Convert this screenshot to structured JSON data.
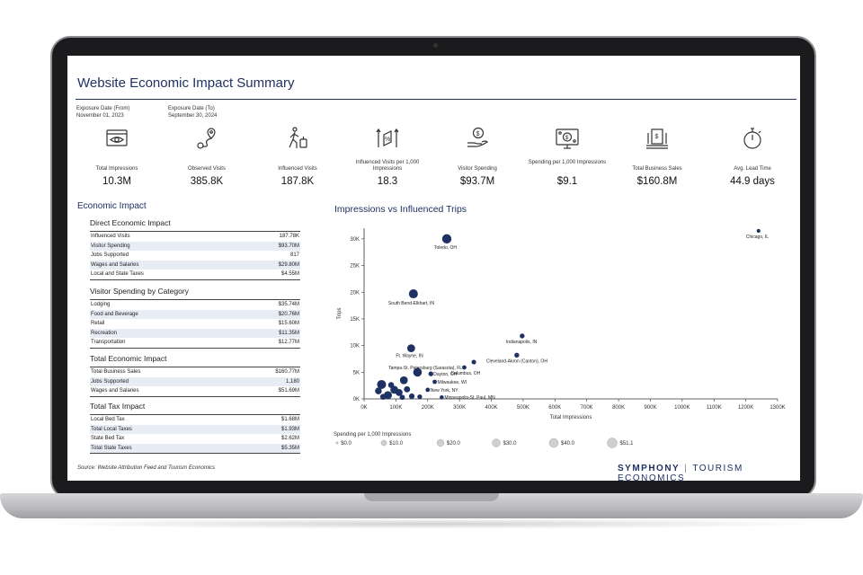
{
  "header": {
    "title": "Website Economic Impact Summary"
  },
  "dates": [
    {
      "label": "Exposure Date (From)",
      "value": "November 01, 2023"
    },
    {
      "label": "Exposure Date (To)",
      "value": "September 30, 2024"
    }
  ],
  "kpis": [
    {
      "label": "Total Impressions",
      "value": "10.3M",
      "icon": "eye-monitor-icon"
    },
    {
      "label": "Observed Visits",
      "value": "385.8K",
      "icon": "map-route-icon"
    },
    {
      "label": "Influenced Visits",
      "value": "187.8K",
      "icon": "traveler-luggage-icon"
    },
    {
      "label": "Influenced Visits per 1,000 Impressions",
      "value": "18.3",
      "icon": "percent-arrows-icon"
    },
    {
      "label": "Visitor Spending",
      "value": "$93.7M",
      "icon": "hand-coin-icon"
    },
    {
      "label": "Spending per 1,000 Impressions",
      "value": "$9.1",
      "icon": "screen-dollar-icon"
    },
    {
      "label": "Total Business Sales",
      "value": "$160.8M",
      "icon": "money-stack-icon"
    },
    {
      "label": "Avg. Lead Time",
      "value": "44.9 days",
      "icon": "stopwatch-icon"
    }
  ],
  "economic": {
    "title": "Economic Impact",
    "groups": [
      {
        "title": "Direct Economic Impact",
        "rows": [
          [
            "Influenced Visits",
            "187.78K"
          ],
          [
            "Visitor Spending",
            "$93.70M"
          ],
          [
            "Jobs Supported",
            "817"
          ],
          [
            "Wages and Salaries",
            "$29.80M"
          ],
          [
            "Local and State Taxes",
            "$4.55M"
          ]
        ]
      },
      {
        "title": "Visitor Spending by Category",
        "rows": [
          [
            "Lodging",
            "$35.74M"
          ],
          [
            "Food and Beverage",
            "$20.76M"
          ],
          [
            "Retail",
            "$15.60M"
          ],
          [
            "Recreation",
            "$11.35M"
          ],
          [
            "Transportation",
            "$12.77M"
          ]
        ]
      },
      {
        "title": "Total Economic Impact",
        "rows": [
          [
            "Total Business Sales",
            "$160.77M"
          ],
          [
            "Jobs Supported",
            "1,180"
          ],
          [
            "Wages and Salaries",
            "$51.69M"
          ]
        ]
      },
      {
        "title": "Total Tax Impact",
        "rows": [
          [
            "Local Bed Tax",
            "$1.68M"
          ],
          [
            "Total Local Taxes",
            "$1.93M"
          ],
          [
            "State Bed Tax",
            "$2.62M"
          ],
          [
            "Total State Taxes",
            "$5.35M"
          ]
        ]
      }
    ]
  },
  "chart_data": {
    "type": "scatter",
    "title": "Impressions vs Influenced Trips",
    "xlabel": "Total Impressions",
    "ylabel": "Trips",
    "xlim": [
      0,
      1300000
    ],
    "ylim": [
      0,
      32000
    ],
    "x_ticks": [
      0,
      100000,
      200000,
      300000,
      400000,
      500000,
      600000,
      700000,
      800000,
      900000,
      1000000,
      1100000,
      1200000,
      1300000
    ],
    "x_tick_labels": [
      "0K",
      "100K",
      "200K",
      "300K",
      "400K",
      "500K",
      "600K",
      "700K",
      "800K",
      "900K",
      "1000K",
      "1100K",
      "1200K",
      "1300K"
    ],
    "y_ticks": [
      0,
      5000,
      10000,
      15000,
      20000,
      25000,
      30000
    ],
    "y_tick_labels": [
      "0K",
      "5K",
      "10K",
      "15K",
      "20K",
      "25K",
      "30K"
    ],
    "color": "#1f3163",
    "size_legend_title": "Spending per 1,000 Impressions",
    "size_legend": [
      "$0.0",
      "$10.0",
      "$20.0",
      "$30.0",
      "$40.0",
      "$51.1"
    ],
    "size_legend_values": [
      0,
      10,
      20,
      30,
      40,
      51.1
    ],
    "points": [
      {
        "label": "Chicago, IL",
        "x": 1240000,
        "y": 31500,
        "spend": 2
      },
      {
        "label": "Toledo, OH",
        "x": 260000,
        "y": 30000,
        "spend": 44
      },
      {
        "label": "South Bend-Elkhart, IN",
        "x": 155000,
        "y": 19700,
        "spend": 40
      },
      {
        "label": "Indianapolis, IN",
        "x": 497000,
        "y": 11800,
        "spend": 6
      },
      {
        "label": "Ft. Wayne, IN",
        "x": 148000,
        "y": 9500,
        "spend": 28
      },
      {
        "label": "Cleveland-Akron (Canton), OH",
        "x": 480000,
        "y": 8200,
        "spend": 6
      },
      {
        "label": "Tampa-St. Petersburg (Sarasota), FL",
        "x": 345000,
        "y": 6900,
        "spend": 5
      },
      {
        "label": "Columbus, OH",
        "x": 315000,
        "y": 5900,
        "spend": 4
      },
      {
        "label": "Dayton, OH",
        "x": 210000,
        "y": 4700,
        "spend": 6
      },
      {
        "label": "Milwaukee, WI",
        "x": 222000,
        "y": 3200,
        "spend": 4
      },
      {
        "label": "New York, NY",
        "x": 200000,
        "y": 1700,
        "spend": 4
      },
      {
        "label": "Minneapolis-St. Paul, MN",
        "x": 244000,
        "y": 300,
        "spend": 3
      },
      {
        "label": "",
        "x": 168000,
        "y": 5000,
        "spend": 36
      },
      {
        "label": "",
        "x": 125000,
        "y": 3500,
        "spend": 28
      },
      {
        "label": "",
        "x": 55000,
        "y": 2700,
        "spend": 40
      },
      {
        "label": "",
        "x": 95000,
        "y": 1700,
        "spend": 28
      },
      {
        "label": "",
        "x": 75000,
        "y": 700,
        "spend": 30
      },
      {
        "label": "",
        "x": 110000,
        "y": 1200,
        "spend": 20
      },
      {
        "label": "",
        "x": 135000,
        "y": 1800,
        "spend": 14
      },
      {
        "label": "",
        "x": 60000,
        "y": 400,
        "spend": 12
      },
      {
        "label": "",
        "x": 150000,
        "y": 500,
        "spend": 10
      },
      {
        "label": "",
        "x": 85000,
        "y": 2600,
        "spend": 12
      },
      {
        "label": "",
        "x": 175000,
        "y": 400,
        "spend": 6
      },
      {
        "label": "",
        "x": 45000,
        "y": 1500,
        "spend": 18
      },
      {
        "label": "",
        "x": 120000,
        "y": 300,
        "spend": 8
      }
    ]
  },
  "footer": {
    "source": "Source: Website Attribution Feed and Tourism Economics",
    "brand_primary": "SYMPHONY",
    "brand_separator": "|",
    "brand_secondary": "TOURISM ECONOMICS"
  }
}
